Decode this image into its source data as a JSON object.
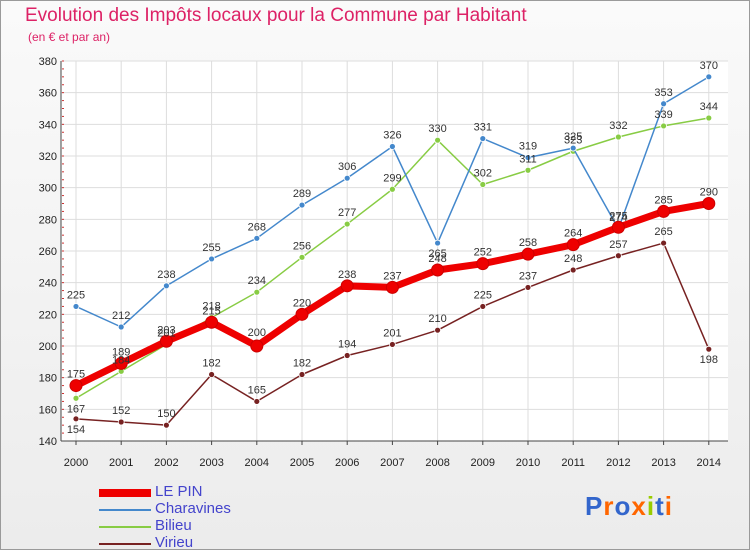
{
  "chart_data": {
    "type": "line",
    "title": "Evolution des Impôts locaux pour la Commune par Habitant",
    "subtitle": "(en € et par an)",
    "xlabel": "",
    "ylabel": "",
    "x": [
      "2000",
      "2001",
      "2002",
      "2003",
      "2004",
      "2005",
      "2006",
      "2007",
      "2008",
      "2009",
      "2010",
      "2011",
      "2012",
      "2013",
      "2014"
    ],
    "ylim": [
      140,
      380
    ],
    "yticks": [
      140,
      160,
      180,
      200,
      220,
      240,
      260,
      280,
      300,
      320,
      340,
      360,
      380
    ],
    "grid": true,
    "legend_position": "bottom-left",
    "series": [
      {
        "name": "LE PIN",
        "color": "#ee0000",
        "values": [
          175,
          189,
          203,
          215,
          200,
          220,
          238,
          237,
          248,
          252,
          258,
          264,
          275,
          285,
          290
        ]
      },
      {
        "name": "Charavines",
        "color": "#4488cc",
        "values": [
          225,
          212,
          238,
          255,
          268,
          289,
          306,
          326,
          265,
          331,
          319,
          325,
          274,
          353,
          370
        ]
      },
      {
        "name": "Bilieu",
        "color": "#88cc44",
        "values": [
          167,
          184,
          201,
          218,
          234,
          256,
          277,
          299,
          330,
          302,
          311,
          323,
          332,
          339,
          344
        ]
      },
      {
        "name": "Virieu",
        "color": "#772222",
        "values": [
          154,
          152,
          150,
          182,
          165,
          182,
          194,
          201,
          210,
          225,
          237,
          248,
          257,
          265,
          198
        ]
      }
    ]
  },
  "logo": {
    "text": "Proxiti",
    "colors": [
      "#3366cc",
      "#ff6600",
      "#3366cc",
      "#ff6600",
      "#99cc00",
      "#3366cc",
      "#ff6600"
    ]
  }
}
